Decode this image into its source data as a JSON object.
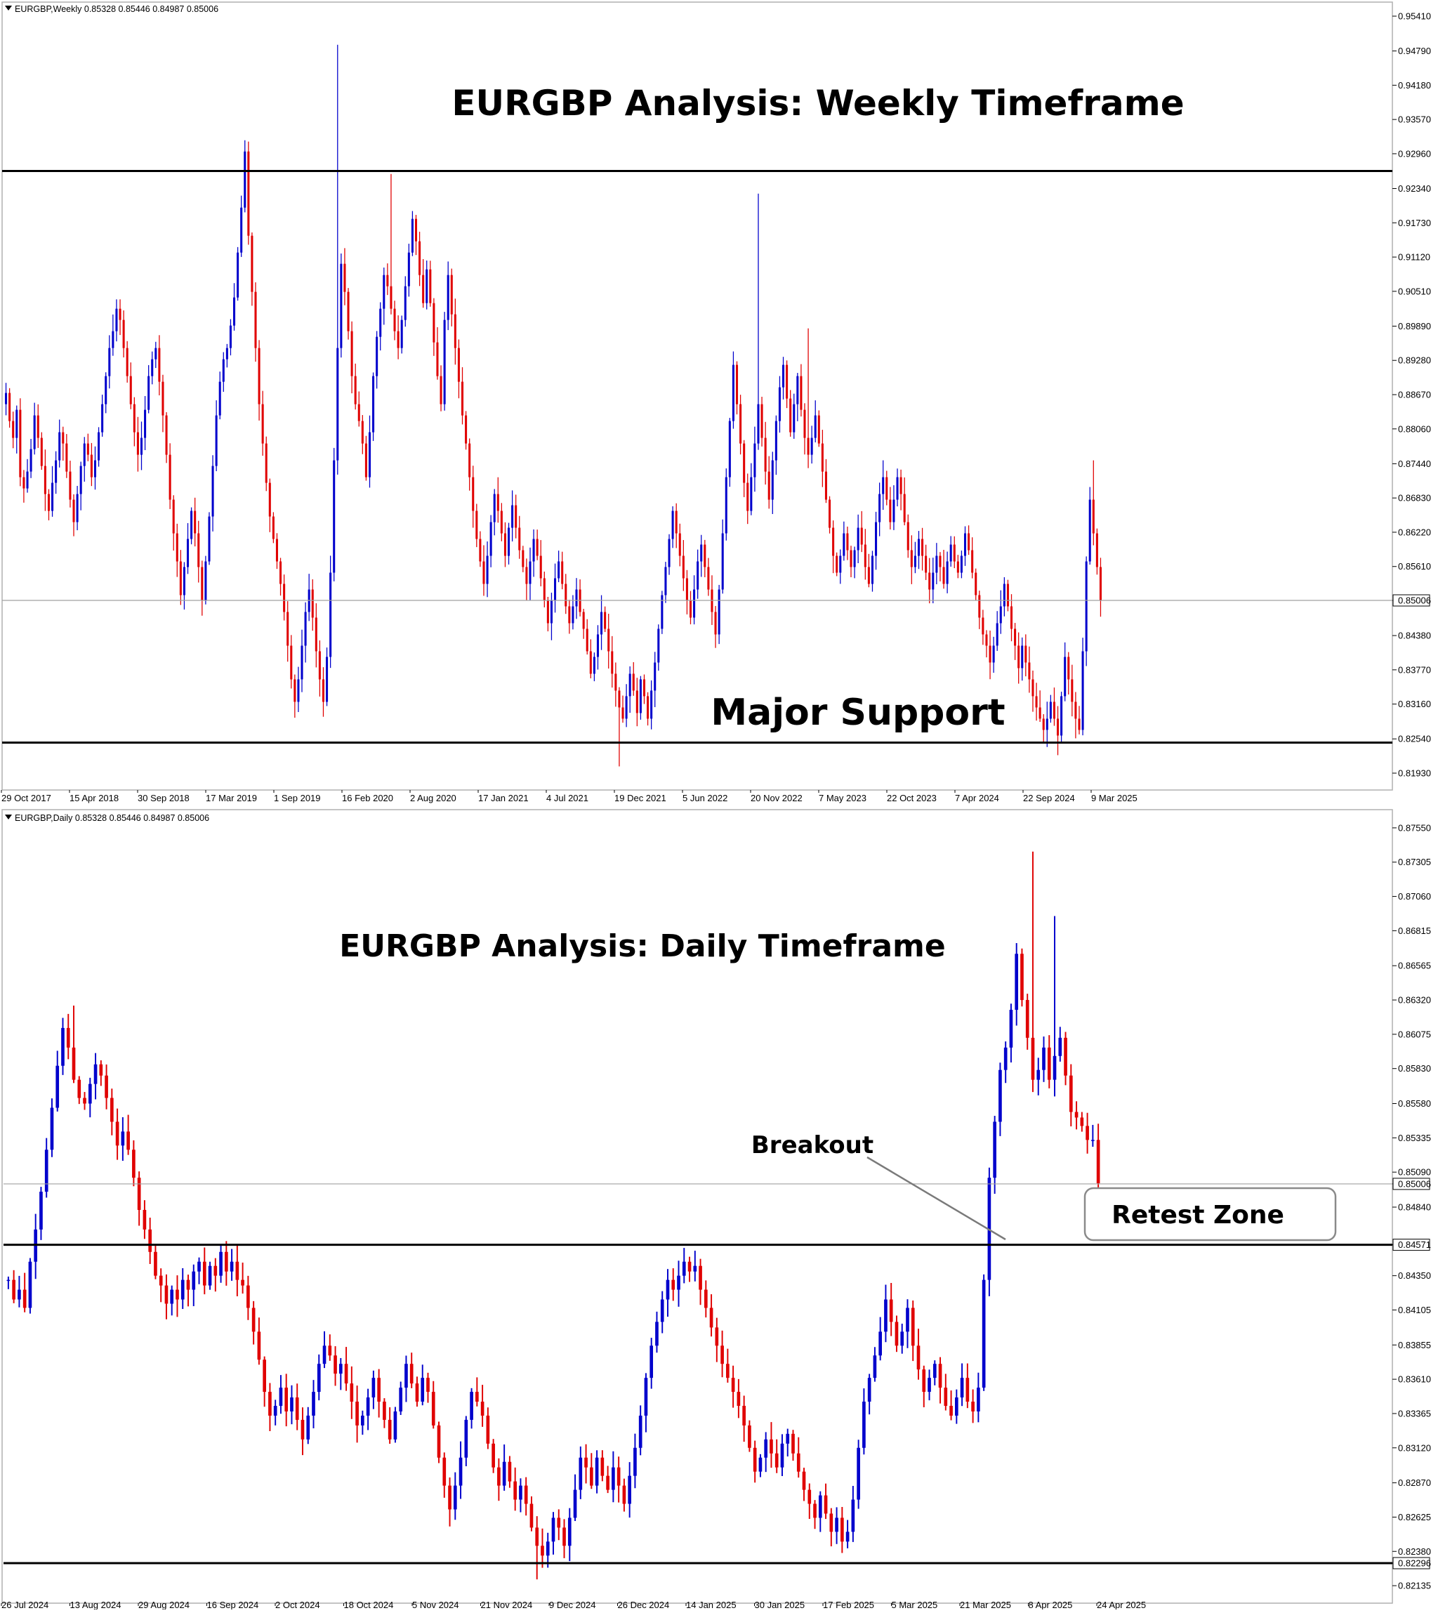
{
  "chart_data": [
    {
      "type": "candlestick",
      "symbol_header": "EURGBP,Weekly  0.85328 0.85446 0.84987 0.85006",
      "title": "EURGBP Analysis: Weekly Timeframe",
      "ylim": [
        0.8163,
        0.9566
      ],
      "y_ticks": [
        "0.95410",
        "0.94790",
        "0.94180",
        "0.93570",
        "0.92960",
        "0.92340",
        "0.91730",
        "0.91120",
        "0.90510",
        "0.89890",
        "0.89280",
        "0.88670",
        "0.88060",
        "0.87440",
        "0.86830",
        "0.86220",
        "0.85610",
        "0.85006",
        "0.84380",
        "0.83770",
        "0.83160",
        "0.82540",
        "0.81930"
      ],
      "x_ticks": [
        "29 Oct 2017",
        "15 Apr 2018",
        "30 Sep 2018",
        "17 Mar 2019",
        "1 Sep 2019",
        "16 Feb 2020",
        "2 Aug 2020",
        "17 Jan 2021",
        "4 Jul 2021",
        "19 Dec 2021",
        "5 Jun 2022",
        "20 Nov 2022",
        "7 May 2023",
        "22 Oct 2023",
        "7 Apr 2024",
        "22 Sep 2024",
        "9 Mar 2025"
      ],
      "levels": [
        {
          "value": 0.92653,
          "label": "0.92653",
          "style": "solid-thick"
        },
        {
          "value": 0.82474,
          "label": "0.82474",
          "style": "solid-thick"
        },
        {
          "value": 0.85006,
          "label": "0.85006",
          "style": "thin-grey"
        }
      ],
      "annotations": [
        {
          "text": "Major Support"
        }
      ],
      "closes": [
        0.887,
        0.882,
        0.879,
        0.884,
        0.872,
        0.87,
        0.873,
        0.877,
        0.883,
        0.879,
        0.874,
        0.869,
        0.866,
        0.871,
        0.875,
        0.88,
        0.878,
        0.873,
        0.868,
        0.864,
        0.869,
        0.874,
        0.878,
        0.876,
        0.872,
        0.875,
        0.88,
        0.885,
        0.89,
        0.895,
        0.898,
        0.902,
        0.9,
        0.895,
        0.89,
        0.885,
        0.88,
        0.876,
        0.879,
        0.884,
        0.89,
        0.893,
        0.895,
        0.889,
        0.883,
        0.876,
        0.868,
        0.862,
        0.857,
        0.851,
        0.856,
        0.861,
        0.866,
        0.862,
        0.856,
        0.85,
        0.857,
        0.865,
        0.874,
        0.883,
        0.889,
        0.893,
        0.895,
        0.899,
        0.904,
        0.912,
        0.92,
        0.93,
        0.915,
        0.905,
        0.895,
        0.885,
        0.878,
        0.871,
        0.865,
        0.861,
        0.857,
        0.853,
        0.848,
        0.842,
        0.836,
        0.832,
        0.836,
        0.842,
        0.848,
        0.852,
        0.847,
        0.841,
        0.836,
        0.832,
        0.84,
        0.855,
        0.875,
        0.895,
        0.91,
        0.905,
        0.898,
        0.89,
        0.885,
        0.882,
        0.878,
        0.872,
        0.88,
        0.89,
        0.897,
        0.902,
        0.908,
        0.906,
        0.902,
        0.898,
        0.895,
        0.9,
        0.906,
        0.912,
        0.918,
        0.914,
        0.908,
        0.903,
        0.909,
        0.903,
        0.896,
        0.89,
        0.885,
        0.9,
        0.908,
        0.901,
        0.895,
        0.889,
        0.883,
        0.878,
        0.872,
        0.866,
        0.861,
        0.857,
        0.853,
        0.858,
        0.864,
        0.869,
        0.866,
        0.862,
        0.858,
        0.863,
        0.867,
        0.863,
        0.859,
        0.856,
        0.853,
        0.857,
        0.861,
        0.858,
        0.854,
        0.85,
        0.846,
        0.85,
        0.854,
        0.857,
        0.853,
        0.849,
        0.846,
        0.849,
        0.852,
        0.848,
        0.845,
        0.841,
        0.837,
        0.84,
        0.844,
        0.848,
        0.845,
        0.841,
        0.837,
        0.834,
        0.831,
        0.829,
        0.833,
        0.837,
        0.834,
        0.83,
        0.836,
        0.833,
        0.829,
        0.834,
        0.839,
        0.845,
        0.851,
        0.856,
        0.861,
        0.866,
        0.862,
        0.858,
        0.854,
        0.85,
        0.847,
        0.852,
        0.857,
        0.86,
        0.856,
        0.852,
        0.848,
        0.844,
        0.852,
        0.862,
        0.872,
        0.882,
        0.892,
        0.885,
        0.878,
        0.871,
        0.866,
        0.872,
        0.878,
        0.885,
        0.879,
        0.873,
        0.868,
        0.875,
        0.882,
        0.888,
        0.892,
        0.886,
        0.88,
        0.885,
        0.89,
        0.884,
        0.879,
        0.876,
        0.879,
        0.883,
        0.878,
        0.873,
        0.868,
        0.863,
        0.858,
        0.855,
        0.858,
        0.862,
        0.859,
        0.856,
        0.859,
        0.863,
        0.86,
        0.856,
        0.853,
        0.858,
        0.864,
        0.869,
        0.872,
        0.868,
        0.864,
        0.868,
        0.872,
        0.869,
        0.864,
        0.859,
        0.856,
        0.858,
        0.861,
        0.858,
        0.855,
        0.852,
        0.855,
        0.858,
        0.856,
        0.853,
        0.857,
        0.86,
        0.857,
        0.855,
        0.858,
        0.862,
        0.859,
        0.855,
        0.851,
        0.847,
        0.844,
        0.842,
        0.839,
        0.842,
        0.846,
        0.849,
        0.853,
        0.849,
        0.845,
        0.842,
        0.838,
        0.842,
        0.839,
        0.836,
        0.833,
        0.831,
        0.829,
        0.827,
        0.829,
        0.832,
        0.829,
        0.826,
        0.833,
        0.84,
        0.836,
        0.832,
        0.829,
        0.827,
        0.841,
        0.857,
        0.868,
        0.862,
        0.856,
        0.85
      ],
      "opens_first": 0.885,
      "wicks": [
        {
          "i": 67,
          "high": 0.932
        },
        {
          "i": 93,
          "high": 0.949
        },
        {
          "i": 108,
          "high": 0.926
        },
        {
          "i": 172,
          "low": 0.8205
        },
        {
          "i": 211,
          "high": 0.9225
        },
        {
          "i": 225,
          "high": 0.8985
        },
        {
          "i": 295,
          "low": 0.8225
        },
        {
          "i": 300,
          "low": 0.8255
        },
        {
          "i": 305,
          "high": 0.875
        }
      ]
    },
    {
      "type": "candlestick",
      "symbol_header": "EURGBP,Daily  0.85328 0.85446 0.84987 0.85006",
      "title": "EURGBP Analysis: Daily Timeframe",
      "ylim": [
        0.8201,
        0.8768
      ],
      "y_ticks": [
        "0.87550",
        "0.87305",
        "0.87060",
        "0.86815",
        "0.86565",
        "0.86320",
        "0.86075",
        "0.85830",
        "0.85580",
        "0.85335",
        "0.85090",
        "0.85006",
        "0.84840",
        "0.84571",
        "0.84350",
        "0.84105",
        "0.83855",
        "0.83610",
        "0.83365",
        "0.83120",
        "0.82870",
        "0.82625",
        "0.82380",
        "0.82296",
        "0.82135"
      ],
      "x_ticks": [
        "26 Jul 2024",
        "13 Aug 2024",
        "29 Aug 2024",
        "16 Sep 2024",
        "2 Oct 2024",
        "18 Oct 2024",
        "5 Nov 2024",
        "21 Nov 2024",
        "9 Dec 2024",
        "26 Dec 2024",
        "14 Jan 2025",
        "30 Jan 2025",
        "17 Feb 2025",
        "5 Mar 2025",
        "21 Mar 2025",
        "8 Apr 2025",
        "24 Apr 2025"
      ],
      "levels": [
        {
          "value": 0.84571,
          "label": "0.84571",
          "style": "solid-thick"
        },
        {
          "value": 0.82296,
          "label": "0.82296",
          "style": "solid-thick"
        },
        {
          "value": 0.85006,
          "label": "0.85006",
          "style": "thin-grey"
        }
      ],
      "annotations": [
        {
          "text": "Breakout"
        },
        {
          "text": "Retest Zone"
        }
      ],
      "closes": [
        0.8432,
        0.8418,
        0.8425,
        0.8412,
        0.8445,
        0.8468,
        0.8495,
        0.8525,
        0.8555,
        0.8585,
        0.8612,
        0.8598,
        0.8575,
        0.8562,
        0.8558,
        0.8572,
        0.8586,
        0.8578,
        0.8562,
        0.8545,
        0.8528,
        0.8538,
        0.8525,
        0.8505,
        0.8482,
        0.8468,
        0.8452,
        0.8435,
        0.8428,
        0.8415,
        0.8425,
        0.8418,
        0.8432,
        0.8425,
        0.8438,
        0.8445,
        0.8428,
        0.8442,
        0.8435,
        0.8452,
        0.8438,
        0.8445,
        0.8432,
        0.8428,
        0.8412,
        0.8395,
        0.8375,
        0.8352,
        0.8335,
        0.8342,
        0.8355,
        0.8338,
        0.8348,
        0.8332,
        0.8318,
        0.8335,
        0.8352,
        0.8372,
        0.8385,
        0.8378,
        0.8365,
        0.8372,
        0.8358,
        0.8345,
        0.8328,
        0.8335,
        0.8348,
        0.8362,
        0.8345,
        0.8332,
        0.8318,
        0.8338,
        0.8355,
        0.8372,
        0.8358,
        0.8345,
        0.8362,
        0.8352,
        0.8328,
        0.8305,
        0.8285,
        0.8268,
        0.8285,
        0.8305,
        0.8332,
        0.8352,
        0.8345,
        0.8335,
        0.8315,
        0.8298,
        0.8285,
        0.8302,
        0.8288,
        0.8275,
        0.8285,
        0.8272,
        0.8255,
        0.8242,
        0.8235,
        0.8245,
        0.8262,
        0.8255,
        0.8242,
        0.8262,
        0.8282,
        0.8305,
        0.8298,
        0.8285,
        0.8305,
        0.8292,
        0.8282,
        0.8298,
        0.8285,
        0.8272,
        0.8292,
        0.8312,
        0.8335,
        0.8362,
        0.8385,
        0.8402,
        0.8418,
        0.8432,
        0.8425,
        0.8435,
        0.8445,
        0.8438,
        0.8442,
        0.8425,
        0.8412,
        0.8398,
        0.8385,
        0.8372,
        0.8362,
        0.8352,
        0.8342,
        0.8328,
        0.8312,
        0.8295,
        0.8305,
        0.8318,
        0.8308,
        0.8298,
        0.8315,
        0.8322,
        0.8308,
        0.8295,
        0.8282,
        0.8272,
        0.8262,
        0.8278,
        0.8265,
        0.8252,
        0.8262,
        0.8245,
        0.8252,
        0.8275,
        0.8312,
        0.8345,
        0.8362,
        0.8378,
        0.8395,
        0.8418,
        0.8402,
        0.8385,
        0.8395,
        0.8412,
        0.8385,
        0.8368,
        0.8352,
        0.8362,
        0.8372,
        0.8355,
        0.8342,
        0.8335,
        0.8348,
        0.8362,
        0.8345,
        0.8338,
        0.8355,
        0.8432,
        0.8505,
        0.8545,
        0.8582,
        0.8598,
        0.8625,
        0.8665,
        0.8632,
        0.8605,
        0.8575,
        0.8582,
        0.8598,
        0.8575,
        0.8592,
        0.8605,
        0.8578,
        0.8552,
        0.8548,
        0.8542,
        0.8532,
        0.8532,
        0.8501
      ],
      "wicks": [
        {
          "i": 12,
          "high": 0.8628
        },
        {
          "i": 97,
          "low": 0.8218
        },
        {
          "i": 188,
          "high": 0.8738
        },
        {
          "i": 192,
          "high": 0.8692
        }
      ]
    }
  ]
}
